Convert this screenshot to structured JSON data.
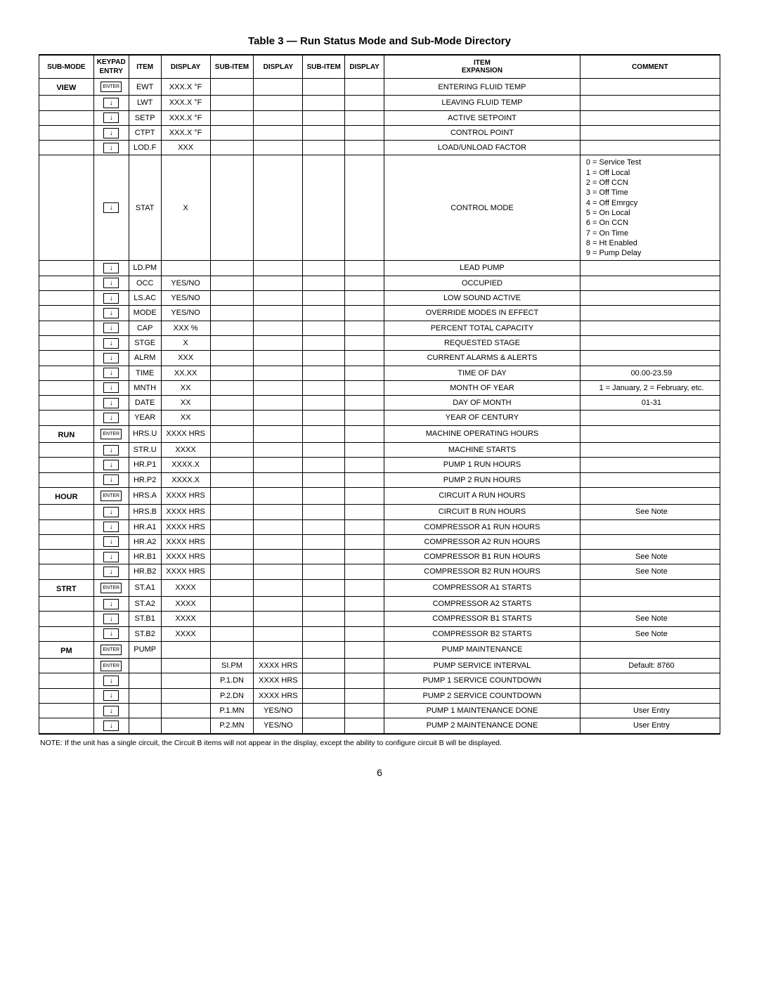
{
  "title": "Table 3 — Run Status Mode and Sub-Mode Directory",
  "headers": {
    "submode": "SUB-MODE",
    "keypad": "KEYPAD ENTRY",
    "item": "ITEM",
    "display1": "DISPLAY",
    "subitem1": "SUB-ITEM",
    "display2": "DISPLAY",
    "subitem2": "SUB-ITEM",
    "display3": "DISPLAY",
    "expansion": "ITEM EXPANSION",
    "comment": "COMMENT"
  },
  "key_enter": "ENTER",
  "key_down": "↓",
  "rows": [
    {
      "submode": "VIEW",
      "key": "enter",
      "item": "EWT",
      "d1": "XXX.X °F",
      "s1": "",
      "d2": "",
      "s2": "",
      "d3": "",
      "exp": "ENTERING FLUID TEMP",
      "com": "",
      "cc": "center"
    },
    {
      "submode": "",
      "key": "down",
      "item": "LWT",
      "d1": "XXX.X °F",
      "s1": "",
      "d2": "",
      "s2": "",
      "d3": "",
      "exp": "LEAVING FLUID TEMP",
      "com": "",
      "cc": "center"
    },
    {
      "submode": "",
      "key": "down",
      "item": "SETP",
      "d1": "XXX.X °F",
      "s1": "",
      "d2": "",
      "s2": "",
      "d3": "",
      "exp": "ACTIVE SETPOINT",
      "com": "",
      "cc": "center"
    },
    {
      "submode": "",
      "key": "down",
      "item": "CTPT",
      "d1": "XXX.X °F",
      "s1": "",
      "d2": "",
      "s2": "",
      "d3": "",
      "exp": "CONTROL POINT",
      "com": "",
      "cc": "center"
    },
    {
      "submode": "",
      "key": "down",
      "item": "LOD.F",
      "d1": "XXX",
      "s1": "",
      "d2": "",
      "s2": "",
      "d3": "",
      "exp": "LOAD/UNLOAD FACTOR",
      "com": "",
      "cc": "center"
    },
    {
      "submode": "",
      "key": "down",
      "item": "STAT",
      "d1": "X",
      "s1": "",
      "d2": "",
      "s2": "",
      "d3": "",
      "exp": "CONTROL MODE",
      "com": "0 = Service Test\n1 = Off Local\n2 = Off CCN\n3 = Off Time\n4 = Off Emrgcy\n5 = On Local\n6 = On CCN\n7 = On Time\n8 = Ht Enabled\n9 = Pump Delay",
      "cc": "left"
    },
    {
      "submode": "",
      "key": "down",
      "item": "LD.PM",
      "d1": "",
      "s1": "",
      "d2": "",
      "s2": "",
      "d3": "",
      "exp": "LEAD PUMP",
      "com": "",
      "cc": "center"
    },
    {
      "submode": "",
      "key": "down",
      "item": "OCC",
      "d1": "YES/NO",
      "s1": "",
      "d2": "",
      "s2": "",
      "d3": "",
      "exp": "OCCUPIED",
      "com": "",
      "cc": "center"
    },
    {
      "submode": "",
      "key": "down",
      "item": "LS.AC",
      "d1": "YES/NO",
      "s1": "",
      "d2": "",
      "s2": "",
      "d3": "",
      "exp": "LOW SOUND ACTIVE",
      "com": "",
      "cc": "center"
    },
    {
      "submode": "",
      "key": "down",
      "item": "MODE",
      "d1": "YES/NO",
      "s1": "",
      "d2": "",
      "s2": "",
      "d3": "",
      "exp": "OVERRIDE MODES IN EFFECT",
      "com": "",
      "cc": "center"
    },
    {
      "submode": "",
      "key": "down",
      "item": "CAP",
      "d1": "XXX %",
      "s1": "",
      "d2": "",
      "s2": "",
      "d3": "",
      "exp": "PERCENT TOTAL CAPACITY",
      "com": "",
      "cc": "center"
    },
    {
      "submode": "",
      "key": "down",
      "item": "STGE",
      "d1": "X",
      "s1": "",
      "d2": "",
      "s2": "",
      "d3": "",
      "exp": "REQUESTED STAGE",
      "com": "",
      "cc": "center"
    },
    {
      "submode": "",
      "key": "down",
      "item": "ALRM",
      "d1": "XXX",
      "s1": "",
      "d2": "",
      "s2": "",
      "d3": "",
      "exp": "CURRENT ALARMS & ALERTS",
      "com": "",
      "cc": "center"
    },
    {
      "submode": "",
      "key": "down",
      "item": "TIME",
      "d1": "XX.XX",
      "s1": "",
      "d2": "",
      "s2": "",
      "d3": "",
      "exp": "TIME OF DAY",
      "com": "00.00-23.59",
      "cc": "center"
    },
    {
      "submode": "",
      "key": "down",
      "item": "MNTH",
      "d1": "XX",
      "s1": "",
      "d2": "",
      "s2": "",
      "d3": "",
      "exp": "MONTH OF YEAR",
      "com": "1 = January, 2 = February, etc.",
      "cc": "center"
    },
    {
      "submode": "",
      "key": "down",
      "item": "DATE",
      "d1": "XX",
      "s1": "",
      "d2": "",
      "s2": "",
      "d3": "",
      "exp": "DAY OF MONTH",
      "com": "01-31",
      "cc": "center"
    },
    {
      "submode": "",
      "key": "down",
      "item": "YEAR",
      "d1": "XX",
      "s1": "",
      "d2": "",
      "s2": "",
      "d3": "",
      "exp": "YEAR OF CENTURY",
      "com": "",
      "cc": "center"
    },
    {
      "submode": "RUN",
      "key": "enter",
      "item": "HRS.U",
      "d1": "XXXX HRS",
      "s1": "",
      "d2": "",
      "s2": "",
      "d3": "",
      "exp": "MACHINE OPERATING HOURS",
      "com": "",
      "cc": "center"
    },
    {
      "submode": "",
      "key": "down",
      "item": "STR.U",
      "d1": "XXXX",
      "s1": "",
      "d2": "",
      "s2": "",
      "d3": "",
      "exp": "MACHINE STARTS",
      "com": "",
      "cc": "center"
    },
    {
      "submode": "",
      "key": "down",
      "item": "HR.P1",
      "d1": "XXXX.X",
      "s1": "",
      "d2": "",
      "s2": "",
      "d3": "",
      "exp": "PUMP 1 RUN HOURS",
      "com": "",
      "cc": "center"
    },
    {
      "submode": "",
      "key": "down",
      "item": "HR.P2",
      "d1": "XXXX.X",
      "s1": "",
      "d2": "",
      "s2": "",
      "d3": "",
      "exp": "PUMP 2 RUN HOURS",
      "com": "",
      "cc": "center"
    },
    {
      "submode": "HOUR",
      "key": "enter",
      "item": "HRS.A",
      "d1": "XXXX HRS",
      "s1": "",
      "d2": "",
      "s2": "",
      "d3": "",
      "exp": "CIRCUIT A RUN HOURS",
      "com": "",
      "cc": "center"
    },
    {
      "submode": "",
      "key": "down",
      "item": "HRS.B",
      "d1": "XXXX HRS",
      "s1": "",
      "d2": "",
      "s2": "",
      "d3": "",
      "exp": "CIRCUIT B RUN HOURS",
      "com": "See Note",
      "cc": "center"
    },
    {
      "submode": "",
      "key": "down",
      "item": "HR.A1",
      "d1": "XXXX HRS",
      "s1": "",
      "d2": "",
      "s2": "",
      "d3": "",
      "exp": "COMPRESSOR A1 RUN HOURS",
      "com": "",
      "cc": "center"
    },
    {
      "submode": "",
      "key": "down",
      "item": "HR.A2",
      "d1": "XXXX HRS",
      "s1": "",
      "d2": "",
      "s2": "",
      "d3": "",
      "exp": "COMPRESSOR A2 RUN HOURS",
      "com": "",
      "cc": "center"
    },
    {
      "submode": "",
      "key": "down",
      "item": "HR.B1",
      "d1": "XXXX HRS",
      "s1": "",
      "d2": "",
      "s2": "",
      "d3": "",
      "exp": "COMPRESSOR B1 RUN HOURS",
      "com": "See Note",
      "cc": "center"
    },
    {
      "submode": "",
      "key": "down",
      "item": "HR.B2",
      "d1": "XXXX HRS",
      "s1": "",
      "d2": "",
      "s2": "",
      "d3": "",
      "exp": "COMPRESSOR B2 RUN HOURS",
      "com": "See Note",
      "cc": "center"
    },
    {
      "submode": "STRT",
      "key": "enter",
      "item": "ST.A1",
      "d1": "XXXX",
      "s1": "",
      "d2": "",
      "s2": "",
      "d3": "",
      "exp": "COMPRESSOR A1 STARTS",
      "com": "",
      "cc": "center"
    },
    {
      "submode": "",
      "key": "down",
      "item": "ST.A2",
      "d1": "XXXX",
      "s1": "",
      "d2": "",
      "s2": "",
      "d3": "",
      "exp": "COMPRESSOR A2 STARTS",
      "com": "",
      "cc": "center"
    },
    {
      "submode": "",
      "key": "down",
      "item": "ST.B1",
      "d1": "XXXX",
      "s1": "",
      "d2": "",
      "s2": "",
      "d3": "",
      "exp": "COMPRESSOR B1 STARTS",
      "com": "See Note",
      "cc": "center"
    },
    {
      "submode": "",
      "key": "down",
      "item": "ST.B2",
      "d1": "XXXX",
      "s1": "",
      "d2": "",
      "s2": "",
      "d3": "",
      "exp": "COMPRESSOR B2 STARTS",
      "com": "See Note",
      "cc": "center"
    },
    {
      "submode": "PM",
      "key": "enter",
      "item": "PUMP",
      "d1": "",
      "s1": "",
      "d2": "",
      "s2": "",
      "d3": "",
      "exp": "PUMP MAINTENANCE",
      "com": "",
      "cc": "center"
    },
    {
      "submode": "",
      "key": "enter",
      "item": "",
      "d1": "",
      "s1": "SI.PM",
      "d2": "XXXX HRS",
      "s2": "",
      "d3": "",
      "exp": "PUMP SERVICE INTERVAL",
      "com": "Default: 8760",
      "cc": "center"
    },
    {
      "submode": "",
      "key": "down",
      "item": "",
      "d1": "",
      "s1": "P.1.DN",
      "d2": "XXXX HRS",
      "s2": "",
      "d3": "",
      "exp": "PUMP 1 SERVICE COUNTDOWN",
      "com": "",
      "cc": "center"
    },
    {
      "submode": "",
      "key": "down",
      "item": "",
      "d1": "",
      "s1": "P.2.DN",
      "d2": "XXXX HRS",
      "s2": "",
      "d3": "",
      "exp": "PUMP 2 SERVICE COUNTDOWN",
      "com": "",
      "cc": "center"
    },
    {
      "submode": "",
      "key": "down",
      "item": "",
      "d1": "",
      "s1": "P.1.MN",
      "d2": "YES/NO",
      "s2": "",
      "d3": "",
      "exp": "PUMP 1 MAINTENANCE DONE",
      "com": "User Entry",
      "cc": "center"
    },
    {
      "submode": "",
      "key": "down",
      "item": "",
      "d1": "",
      "s1": "P.2.MN",
      "d2": "YES/NO",
      "s2": "",
      "d3": "",
      "exp": "PUMP 2 MAINTENANCE DONE",
      "com": "User Entry",
      "cc": "center"
    }
  ],
  "note": "NOTE: If the unit has a single circuit, the Circuit B items will not appear in the display, except the ability to configure circuit B will be displayed.",
  "page": "6",
  "colwidths": [
    "78",
    "46",
    "46",
    "70",
    "62",
    "70",
    "60",
    "56",
    "280",
    "200"
  ]
}
